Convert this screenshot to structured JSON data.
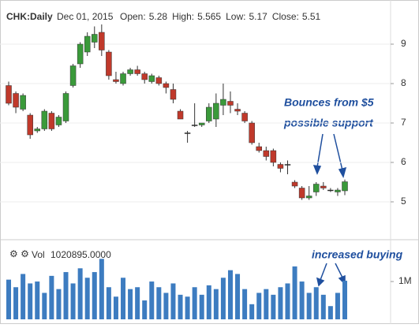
{
  "chart_data": {
    "type": "candlestick",
    "title": "CHK:Daily",
    "date": "Dec 01, 2015",
    "header_labels": [
      "Open:",
      "High:",
      "Low:",
      "Close:"
    ],
    "up_color": "#3a9a3a",
    "down_color": "#c0392b",
    "flat_color": "#222222",
    "grid": true,
    "open": [
      7.95,
      7.75,
      7.35,
      7.2,
      6.8,
      6.85,
      7.25,
      6.95,
      7.05,
      7.95,
      8.5,
      8.8,
      9.05,
      9.3,
      8.8,
      8.1,
      8.0,
      8.25,
      8.35,
      8.25,
      8.05,
      8.15,
      8.0,
      7.85,
      7.3,
      6.75,
      6.95,
      6.95,
      7.05,
      7.1,
      7.45,
      7.55,
      7.35,
      7.25,
      7.0,
      6.4,
      6.3,
      6.3,
      5.95,
      5.95,
      5.5,
      5.35,
      5.1,
      5.25,
      5.4,
      5.3,
      5.25,
      5.28
    ],
    "high": [
      8.05,
      7.8,
      7.75,
      7.25,
      6.9,
      7.35,
      7.3,
      7.2,
      7.8,
      8.5,
      9.05,
      9.3,
      9.45,
      9.5,
      8.85,
      8.3,
      8.3,
      8.4,
      8.45,
      8.3,
      8.25,
      8.2,
      8.05,
      8.0,
      7.35,
      6.8,
      7.5,
      7.0,
      7.5,
      7.75,
      8.0,
      7.8,
      7.5,
      7.3,
      7.05,
      6.5,
      6.4,
      6.35,
      6.0,
      6.05,
      5.55,
      5.4,
      5.4,
      5.5,
      5.5,
      5.35,
      5.35,
      5.565
    ],
    "low": [
      7.45,
      7.25,
      7.3,
      6.6,
      6.75,
      6.8,
      6.8,
      6.9,
      7.0,
      7.9,
      8.4,
      8.7,
      8.9,
      8.7,
      8.1,
      8.0,
      7.95,
      8.2,
      8.2,
      8.0,
      8.0,
      7.95,
      7.75,
      7.5,
      7.1,
      6.5,
      6.9,
      6.9,
      7.0,
      6.9,
      7.2,
      7.25,
      7.2,
      7.0,
      6.45,
      6.25,
      6.05,
      5.9,
      5.75,
      5.7,
      5.35,
      5.05,
      5.05,
      5.15,
      5.3,
      5.25,
      5.15,
      5.17
    ],
    "close": [
      7.5,
      7.4,
      7.7,
      6.7,
      6.85,
      7.3,
      6.85,
      7.15,
      7.75,
      8.45,
      9.0,
      9.2,
      9.25,
      8.85,
      8.2,
      8.05,
      8.25,
      8.35,
      8.25,
      8.1,
      8.2,
      8.0,
      7.9,
      7.6,
      7.1,
      6.75,
      6.95,
      7.0,
      7.4,
      7.5,
      7.6,
      7.45,
      7.3,
      7.05,
      6.5,
      6.3,
      6.15,
      6.0,
      5.85,
      5.95,
      5.4,
      5.1,
      5.15,
      5.45,
      5.35,
      5.3,
      5.3,
      5.51
    ],
    "ylim": [
      4.12,
      9.96
    ],
    "yticks": [
      5,
      6,
      7,
      8,
      9
    ],
    "volume": {
      "name": "Vol",
      "color": "#3d7cc0",
      "values": [
        1050000,
        850000,
        1200000,
        950000,
        1000000,
        700000,
        1150000,
        800000,
        1250000,
        950000,
        1350000,
        1100000,
        1250000,
        1600000,
        850000,
        600000,
        1100000,
        800000,
        850000,
        500000,
        1000000,
        850000,
        700000,
        950000,
        650000,
        600000,
        850000,
        650000,
        900000,
        800000,
        1100000,
        1300000,
        1200000,
        800000,
        400000,
        700000,
        800000,
        650000,
        850000,
        950000,
        1400000,
        1000000,
        700000,
        850000,
        650000,
        350000,
        700000,
        1020895
      ],
      "value_labels": [
        null,
        null,
        null,
        null,
        null,
        null,
        null,
        null,
        null,
        null,
        null,
        null,
        null,
        null,
        null,
        null,
        null,
        null,
        null,
        null,
        null,
        null,
        null,
        null,
        null,
        null,
        null,
        null,
        null,
        null,
        null,
        null,
        null,
        null,
        null,
        null,
        null,
        null,
        null,
        null,
        null,
        null,
        null,
        null,
        null,
        null,
        null,
        "1020895.0000"
      ],
      "ylim": [
        0,
        1940000
      ],
      "yticks": [
        {
          "value": 1000000,
          "label": "1M"
        }
      ]
    },
    "annotations": [
      "Bounces from $5",
      "possible support",
      "increased buying"
    ]
  }
}
